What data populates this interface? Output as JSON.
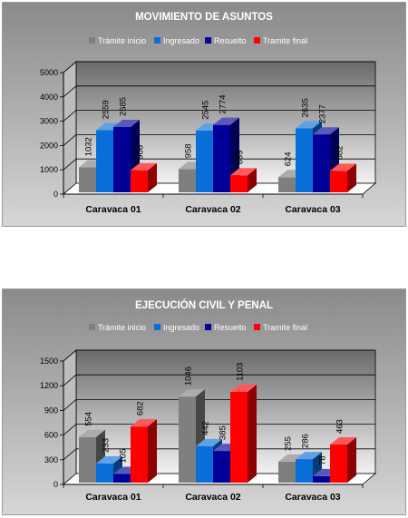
{
  "chart_data": [
    {
      "type": "bar",
      "title": "MOVIMIENTO DE ASUNTOS",
      "categories": [
        "Caravaca 01",
        "Caravaca 02",
        "Caravaca 03"
      ],
      "series": [
        {
          "name": "Trámite inicio",
          "values": [
            1032,
            958,
            624
          ],
          "labels": [
            "1032",
            "958",
            "624"
          ],
          "color": "#7f7f7f"
        },
        {
          "name": "Ingresado",
          "values": [
            2559,
            2545,
            2635
          ],
          "labels": [
            "2559",
            "2545",
            "2635"
          ],
          "color": "#0a6ed8"
        },
        {
          "name": "Resuelto",
          "values": [
            2685,
            2774,
            2377
          ],
          "labels": [
            "2685",
            "2774",
            "2377"
          ],
          "color": "#000099"
        },
        {
          "name": "Tramite final",
          "values": [
            906,
            699,
            882
          ],
          "labels": [
            "906",
            "699",
            "882"
          ],
          "color": "#ff0000"
        }
      ],
      "ylim": [
        0,
        5000
      ],
      "yticks": [
        0,
        1000,
        2000,
        3000,
        4000,
        5000
      ],
      "legend": "top",
      "grid": true
    },
    {
      "type": "bar",
      "title": "EJECUCIÓN CIVIL Y PENAL",
      "categories": [
        "Caravaca 01",
        "Caravaca 02",
        "Caravaca 03"
      ],
      "series": [
        {
          "name": "Trámite inicio",
          "values": [
            554,
            1046,
            255
          ],
          "labels": [
            "554",
            "1046",
            "255"
          ],
          "color": "#7f7f7f"
        },
        {
          "name": "Ingresado",
          "values": [
            233,
            442,
            286
          ],
          "labels": [
            "233",
            "442",
            "286"
          ],
          "color": "#0a6ed8"
        },
        {
          "name": "Resuelto",
          "values": [
            105,
            385,
            78
          ],
          "labels": [
            "105",
            "385",
            "78"
          ],
          "color": "#000099"
        },
        {
          "name": "Tramite final",
          "values": [
            682,
            1103,
            463
          ],
          "labels": [
            "682",
            "1103",
            "463"
          ],
          "color": "#ff0000"
        }
      ],
      "ylim": [
        0,
        1500
      ],
      "yticks": [
        0,
        300,
        600,
        900,
        1200,
        1500
      ],
      "legend": "top",
      "grid": true
    }
  ]
}
